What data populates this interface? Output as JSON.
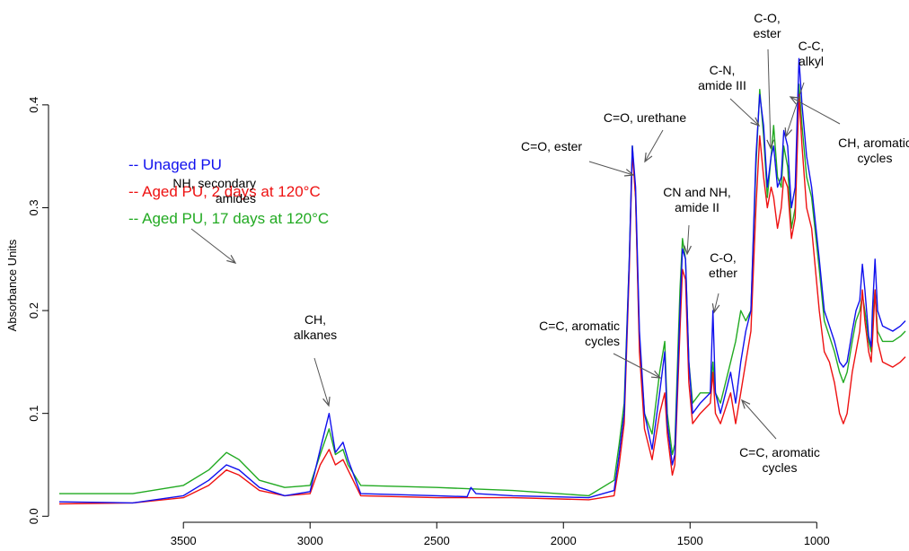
{
  "chart_data": {
    "type": "line",
    "ylabel": "Absorbance Units",
    "xlim": [
      3990,
      650
    ],
    "ylim": [
      -0.005,
      0.495
    ],
    "x_ticks": [
      3500,
      3000,
      2500,
      2000,
      1500,
      1000
    ],
    "x_tick_labels": [
      "3500",
      "3000",
      "2500",
      "2000",
      "1500",
      "1000"
    ],
    "y_ticks": [
      0,
      0.1,
      0.2,
      0.3,
      0.4
    ],
    "y_tick_labels": [
      "0.0",
      "0.1",
      "0.2",
      "0.3",
      "0.4"
    ],
    "grid": false,
    "legend_position": "upper-left",
    "series": [
      {
        "name": "-- Unaged PU",
        "color": "#1010ee",
        "points": [
          [
            3990,
            0.014
          ],
          [
            3700,
            0.013
          ],
          [
            3500,
            0.02
          ],
          [
            3400,
            0.035
          ],
          [
            3330,
            0.05
          ],
          [
            3280,
            0.045
          ],
          [
            3200,
            0.028
          ],
          [
            3100,
            0.02
          ],
          [
            3000,
            0.024
          ],
          [
            2960,
            0.065
          ],
          [
            2925,
            0.1
          ],
          [
            2900,
            0.062
          ],
          [
            2870,
            0.072
          ],
          [
            2850,
            0.055
          ],
          [
            2800,
            0.022
          ],
          [
            2500,
            0.02
          ],
          [
            2380,
            0.019
          ],
          [
            2365,
            0.028
          ],
          [
            2345,
            0.022
          ],
          [
            2200,
            0.02
          ],
          [
            1900,
            0.018
          ],
          [
            1800,
            0.025
          ],
          [
            1780,
            0.06
          ],
          [
            1760,
            0.1
          ],
          [
            1740,
            0.25
          ],
          [
            1728,
            0.36
          ],
          [
            1715,
            0.32
          ],
          [
            1700,
            0.18
          ],
          [
            1680,
            0.1
          ],
          [
            1650,
            0.065
          ],
          [
            1620,
            0.12
          ],
          [
            1600,
            0.16
          ],
          [
            1590,
            0.09
          ],
          [
            1570,
            0.05
          ],
          [
            1560,
            0.06
          ],
          [
            1540,
            0.2
          ],
          [
            1530,
            0.26
          ],
          [
            1518,
            0.25
          ],
          [
            1505,
            0.15
          ],
          [
            1490,
            0.1
          ],
          [
            1460,
            0.11
          ],
          [
            1420,
            0.12
          ],
          [
            1410,
            0.2
          ],
          [
            1400,
            0.12
          ],
          [
            1380,
            0.1
          ],
          [
            1360,
            0.12
          ],
          [
            1340,
            0.14
          ],
          [
            1320,
            0.11
          ],
          [
            1300,
            0.15
          ],
          [
            1280,
            0.18
          ],
          [
            1260,
            0.2
          ],
          [
            1240,
            0.35
          ],
          [
            1225,
            0.41
          ],
          [
            1210,
            0.38
          ],
          [
            1195,
            0.32
          ],
          [
            1180,
            0.35
          ],
          [
            1170,
            0.36
          ],
          [
            1155,
            0.32
          ],
          [
            1140,
            0.33
          ],
          [
            1130,
            0.375
          ],
          [
            1115,
            0.36
          ],
          [
            1100,
            0.3
          ],
          [
            1085,
            0.32
          ],
          [
            1070,
            0.445
          ],
          [
            1058,
            0.4
          ],
          [
            1040,
            0.35
          ],
          [
            1020,
            0.32
          ],
          [
            990,
            0.25
          ],
          [
            970,
            0.2
          ],
          [
            950,
            0.185
          ],
          [
            930,
            0.17
          ],
          [
            910,
            0.15
          ],
          [
            895,
            0.145
          ],
          [
            880,
            0.15
          ],
          [
            860,
            0.18
          ],
          [
            845,
            0.2
          ],
          [
            830,
            0.21
          ],
          [
            820,
            0.245
          ],
          [
            810,
            0.22
          ],
          [
            795,
            0.175
          ],
          [
            785,
            0.165
          ],
          [
            780,
            0.2
          ],
          [
            770,
            0.25
          ],
          [
            760,
            0.2
          ],
          [
            740,
            0.185
          ],
          [
            700,
            0.18
          ],
          [
            670,
            0.185
          ],
          [
            650,
            0.19
          ]
        ]
      },
      {
        "name": "-- Aged PU, 2 days at 120°C",
        "color": "#ee1111",
        "points": [
          [
            3990,
            0.012
          ],
          [
            3700,
            0.013
          ],
          [
            3500,
            0.018
          ],
          [
            3400,
            0.03
          ],
          [
            3330,
            0.045
          ],
          [
            3280,
            0.04
          ],
          [
            3200,
            0.025
          ],
          [
            3100,
            0.02
          ],
          [
            3000,
            0.022
          ],
          [
            2960,
            0.05
          ],
          [
            2925,
            0.065
          ],
          [
            2900,
            0.05
          ],
          [
            2870,
            0.055
          ],
          [
            2850,
            0.045
          ],
          [
            2800,
            0.02
          ],
          [
            2500,
            0.018
          ],
          [
            2200,
            0.018
          ],
          [
            1900,
            0.016
          ],
          [
            1800,
            0.02
          ],
          [
            1780,
            0.05
          ],
          [
            1760,
            0.09
          ],
          [
            1740,
            0.24
          ],
          [
            1728,
            0.355
          ],
          [
            1715,
            0.31
          ],
          [
            1700,
            0.16
          ],
          [
            1680,
            0.085
          ],
          [
            1650,
            0.055
          ],
          [
            1620,
            0.1
          ],
          [
            1600,
            0.12
          ],
          [
            1590,
            0.08
          ],
          [
            1570,
            0.04
          ],
          [
            1560,
            0.05
          ],
          [
            1540,
            0.18
          ],
          [
            1530,
            0.24
          ],
          [
            1518,
            0.23
          ],
          [
            1505,
            0.13
          ],
          [
            1490,
            0.09
          ],
          [
            1460,
            0.1
          ],
          [
            1420,
            0.11
          ],
          [
            1410,
            0.14
          ],
          [
            1400,
            0.1
          ],
          [
            1380,
            0.09
          ],
          [
            1360,
            0.105
          ],
          [
            1340,
            0.12
          ],
          [
            1320,
            0.09
          ],
          [
            1300,
            0.12
          ],
          [
            1280,
            0.15
          ],
          [
            1260,
            0.18
          ],
          [
            1240,
            0.3
          ],
          [
            1225,
            0.37
          ],
          [
            1210,
            0.33
          ],
          [
            1195,
            0.3
          ],
          [
            1180,
            0.32
          ],
          [
            1170,
            0.31
          ],
          [
            1155,
            0.28
          ],
          [
            1140,
            0.3
          ],
          [
            1130,
            0.33
          ],
          [
            1115,
            0.32
          ],
          [
            1100,
            0.27
          ],
          [
            1085,
            0.29
          ],
          [
            1070,
            0.41
          ],
          [
            1058,
            0.36
          ],
          [
            1040,
            0.3
          ],
          [
            1020,
            0.28
          ],
          [
            990,
            0.2
          ],
          [
            970,
            0.16
          ],
          [
            950,
            0.15
          ],
          [
            930,
            0.13
          ],
          [
            910,
            0.1
          ],
          [
            895,
            0.09
          ],
          [
            880,
            0.1
          ],
          [
            860,
            0.14
          ],
          [
            845,
            0.16
          ],
          [
            830,
            0.18
          ],
          [
            820,
            0.22
          ],
          [
            810,
            0.19
          ],
          [
            795,
            0.16
          ],
          [
            785,
            0.15
          ],
          [
            780,
            0.17
          ],
          [
            770,
            0.22
          ],
          [
            760,
            0.17
          ],
          [
            740,
            0.15
          ],
          [
            700,
            0.145
          ],
          [
            670,
            0.15
          ],
          [
            650,
            0.155
          ]
        ]
      },
      {
        "name": "-- Aged PU, 17 days at 120°C",
        "color": "#22aa22",
        "points": [
          [
            3990,
            0.022
          ],
          [
            3700,
            0.022
          ],
          [
            3500,
            0.03
          ],
          [
            3400,
            0.045
          ],
          [
            3330,
            0.062
          ],
          [
            3280,
            0.055
          ],
          [
            3200,
            0.035
          ],
          [
            3100,
            0.028
          ],
          [
            3000,
            0.03
          ],
          [
            2960,
            0.06
          ],
          [
            2925,
            0.085
          ],
          [
            2900,
            0.06
          ],
          [
            2870,
            0.065
          ],
          [
            2850,
            0.05
          ],
          [
            2800,
            0.03
          ],
          [
            2500,
            0.028
          ],
          [
            2200,
            0.025
          ],
          [
            1900,
            0.02
          ],
          [
            1800,
            0.035
          ],
          [
            1780,
            0.07
          ],
          [
            1760,
            0.11
          ],
          [
            1740,
            0.25
          ],
          [
            1728,
            0.36
          ],
          [
            1715,
            0.31
          ],
          [
            1700,
            0.17
          ],
          [
            1680,
            0.1
          ],
          [
            1650,
            0.08
          ],
          [
            1620,
            0.14
          ],
          [
            1600,
            0.17
          ],
          [
            1590,
            0.1
          ],
          [
            1570,
            0.06
          ],
          [
            1560,
            0.07
          ],
          [
            1540,
            0.22
          ],
          [
            1530,
            0.27
          ],
          [
            1518,
            0.25
          ],
          [
            1505,
            0.15
          ],
          [
            1490,
            0.11
          ],
          [
            1460,
            0.12
          ],
          [
            1420,
            0.12
          ],
          [
            1410,
            0.15
          ],
          [
            1400,
            0.12
          ],
          [
            1380,
            0.11
          ],
          [
            1360,
            0.13
          ],
          [
            1340,
            0.15
          ],
          [
            1320,
            0.17
          ],
          [
            1300,
            0.2
          ],
          [
            1280,
            0.19
          ],
          [
            1260,
            0.2
          ],
          [
            1240,
            0.34
          ],
          [
            1225,
            0.415
          ],
          [
            1210,
            0.37
          ],
          [
            1195,
            0.31
          ],
          [
            1180,
            0.35
          ],
          [
            1170,
            0.38
          ],
          [
            1155,
            0.33
          ],
          [
            1140,
            0.32
          ],
          [
            1130,
            0.36
          ],
          [
            1115,
            0.34
          ],
          [
            1100,
            0.28
          ],
          [
            1085,
            0.3
          ],
          [
            1070,
            0.42
          ],
          [
            1058,
            0.38
          ],
          [
            1040,
            0.33
          ],
          [
            1020,
            0.31
          ],
          [
            990,
            0.24
          ],
          [
            970,
            0.19
          ],
          [
            950,
            0.175
          ],
          [
            930,
            0.16
          ],
          [
            910,
            0.14
          ],
          [
            895,
            0.13
          ],
          [
            880,
            0.14
          ],
          [
            860,
            0.17
          ],
          [
            845,
            0.19
          ],
          [
            830,
            0.2
          ],
          [
            820,
            0.215
          ],
          [
            810,
            0.2
          ],
          [
            795,
            0.17
          ],
          [
            785,
            0.16
          ],
          [
            780,
            0.19
          ],
          [
            770,
            0.22
          ],
          [
            760,
            0.18
          ],
          [
            740,
            0.17
          ],
          [
            700,
            0.17
          ],
          [
            670,
            0.175
          ],
          [
            650,
            0.18
          ]
        ]
      }
    ],
    "annotations": [
      {
        "lines": [
          "NH, secondary",
          "amides"
        ],
        "anchor": "end"
      },
      {
        "lines": [
          "CH,",
          "alkanes"
        ],
        "anchor": "middle"
      },
      {
        "lines": [
          "C=O, ester"
        ],
        "anchor": "middle"
      },
      {
        "lines": [
          "C=O, urethane"
        ],
        "anchor": "middle"
      },
      {
        "lines": [
          "CN and NH,",
          "amide II"
        ],
        "anchor": "middle"
      },
      {
        "lines": [
          "C-O,",
          "ether"
        ],
        "anchor": "middle"
      },
      {
        "lines": [
          "C=C, aromatic",
          "cycles"
        ],
        "anchor": "end"
      },
      {
        "lines": [
          "C=C, aromatic",
          "cycles"
        ],
        "anchor": "middle"
      },
      {
        "lines": [
          "C-N,",
          "amide III"
        ],
        "anchor": "middle"
      },
      {
        "lines": [
          "C-O,",
          "ester"
        ],
        "anchor": "middle"
      },
      {
        "lines": [
          "C-C,",
          "alkyl"
        ],
        "anchor": "middle"
      },
      {
        "lines": [
          "CH, aromatic",
          "cycles"
        ],
        "anchor": "middle"
      }
    ]
  }
}
